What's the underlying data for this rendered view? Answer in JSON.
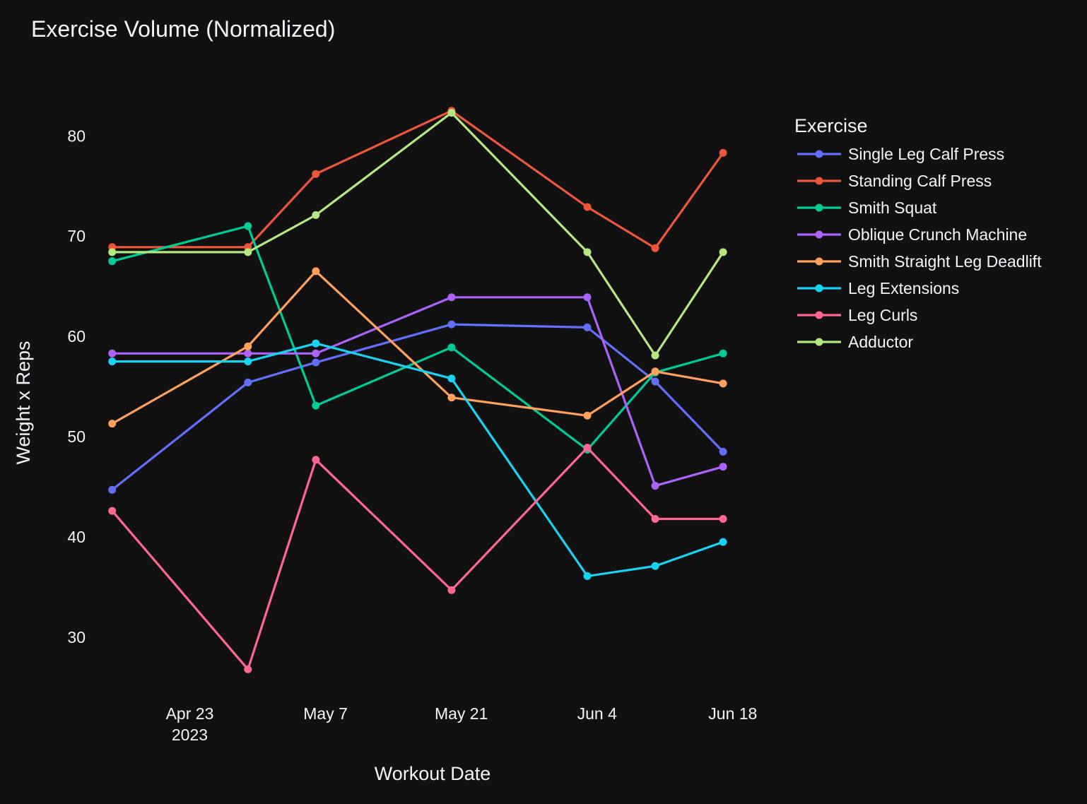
{
  "chart_data": {
    "type": "line",
    "title": "Exercise Volume (Normalized)",
    "xlabel": "Workout Date",
    "ylabel": "Weight x Reps",
    "x": [
      "2023-04-15",
      "2023-04-29",
      "2023-05-06",
      "2023-05-20",
      "2023-06-03",
      "2023-06-10",
      "2023-06-17"
    ],
    "xlim": [
      "2023-04-14",
      "2023-06-21"
    ],
    "ylim": [
      24.5,
      86.5
    ],
    "x_ticks": [
      {
        "date": "2023-04-23",
        "label": "Apr 23",
        "sublabel": "2023"
      },
      {
        "date": "2023-05-07",
        "label": "May 7",
        "sublabel": ""
      },
      {
        "date": "2023-05-21",
        "label": "May 21",
        "sublabel": ""
      },
      {
        "date": "2023-06-04",
        "label": "Jun 4",
        "sublabel": ""
      },
      {
        "date": "2023-06-18",
        "label": "Jun 18",
        "sublabel": ""
      }
    ],
    "y_ticks": [
      30,
      40,
      50,
      60,
      70,
      80
    ],
    "grid": false,
    "legend": {
      "title": "Exercise",
      "position": "right"
    },
    "series": [
      {
        "name": "Single Leg Calf Press",
        "color": "#636efa",
        "points": [
          [
            "2023-04-15",
            44.7
          ],
          [
            "2023-04-29",
            55.4
          ],
          [
            "2023-05-06",
            57.4
          ],
          [
            "2023-05-20",
            61.2
          ],
          [
            "2023-06-03",
            60.9
          ],
          [
            "2023-06-10",
            55.5
          ],
          [
            "2023-06-17",
            48.5
          ]
        ]
      },
      {
        "name": "Standing Calf Press",
        "color": "#ef553b",
        "points": [
          [
            "2023-04-15",
            68.9
          ],
          [
            "2023-04-29",
            68.9
          ],
          [
            "2023-05-06",
            76.2
          ],
          [
            "2023-05-20",
            82.5
          ],
          [
            "2023-06-03",
            72.9
          ],
          [
            "2023-06-10",
            68.8
          ],
          [
            "2023-06-17",
            78.3
          ]
        ]
      },
      {
        "name": "Smith Squat",
        "color": "#00cc96",
        "points": [
          [
            "2023-04-15",
            67.5
          ],
          [
            "2023-04-29",
            71.0
          ],
          [
            "2023-05-06",
            53.1
          ],
          [
            "2023-05-20",
            58.9
          ],
          [
            "2023-06-03",
            48.7
          ],
          [
            "2023-06-10",
            56.4
          ],
          [
            "2023-06-17",
            58.3
          ]
        ]
      },
      {
        "name": "Oblique Crunch Machine",
        "color": "#ab63fa",
        "points": [
          [
            "2023-04-15",
            58.3
          ],
          [
            "2023-04-29",
            58.3
          ],
          [
            "2023-05-06",
            58.3
          ],
          [
            "2023-05-20",
            63.9
          ],
          [
            "2023-06-03",
            63.9
          ],
          [
            "2023-06-10",
            45.1
          ],
          [
            "2023-06-17",
            47.0
          ]
        ]
      },
      {
        "name": "Smith Straight Leg Deadlift",
        "color": "#ffa15a",
        "points": [
          [
            "2023-04-15",
            51.3
          ],
          [
            "2023-04-29",
            59.0
          ],
          [
            "2023-05-06",
            66.5
          ],
          [
            "2023-05-20",
            53.9
          ],
          [
            "2023-06-03",
            52.1
          ],
          [
            "2023-06-10",
            56.5
          ],
          [
            "2023-06-17",
            55.3
          ]
        ]
      },
      {
        "name": "Leg Extensions",
        "color": "#19d3f3",
        "points": [
          [
            "2023-04-15",
            57.5
          ],
          [
            "2023-04-29",
            57.5
          ],
          [
            "2023-05-06",
            59.3
          ],
          [
            "2023-05-20",
            55.8
          ],
          [
            "2023-06-03",
            36.1
          ],
          [
            "2023-06-10",
            37.1
          ],
          [
            "2023-06-17",
            39.5
          ]
        ]
      },
      {
        "name": "Leg Curls",
        "color": "#ff6692",
        "points": [
          [
            "2023-04-15",
            42.6
          ],
          [
            "2023-04-29",
            26.8
          ],
          [
            "2023-05-06",
            47.7
          ],
          [
            "2023-05-20",
            34.7
          ],
          [
            "2023-06-03",
            48.9
          ],
          [
            "2023-06-10",
            41.8
          ],
          [
            "2023-06-17",
            41.8
          ]
        ]
      },
      {
        "name": "Adductor",
        "color": "#b6e880",
        "points": [
          [
            "2023-04-15",
            68.4
          ],
          [
            "2023-04-29",
            68.4
          ],
          [
            "2023-05-06",
            72.1
          ],
          [
            "2023-05-20",
            82.3
          ],
          [
            "2023-06-03",
            68.4
          ],
          [
            "2023-06-10",
            58.1
          ],
          [
            "2023-06-17",
            68.4
          ]
        ]
      }
    ]
  }
}
